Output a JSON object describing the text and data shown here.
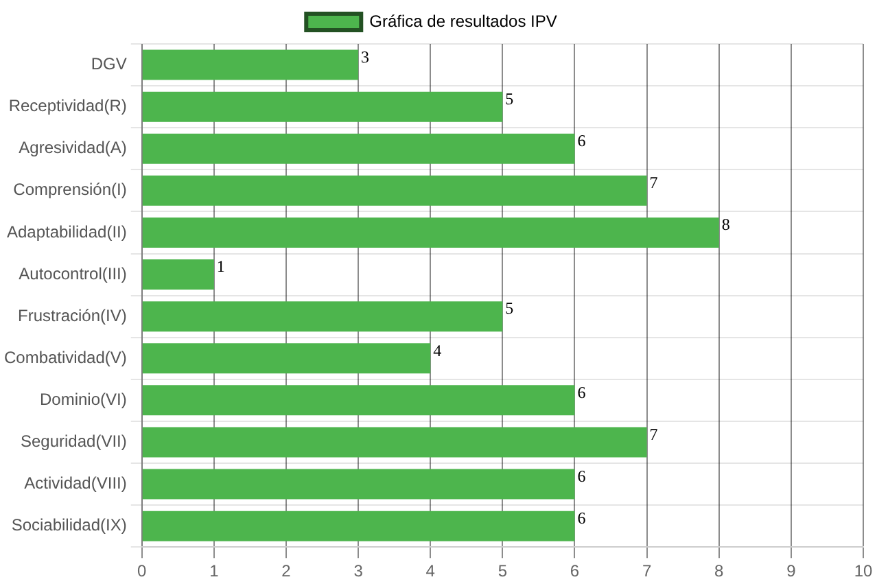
{
  "chart_data": {
    "type": "bar",
    "orientation": "horizontal",
    "categories": [
      "DGV",
      "Receptividad(R)",
      "Agresividad(A)",
      "Comprensión(I)",
      "Adaptabilidad(II)",
      "Autocontrol(III)",
      "Frustración(IV)",
      "Combatividad(V)",
      "Dominio(VI)",
      "Seguridad(VII)",
      "Actividad(VIII)",
      "Sociabilidad(IX)"
    ],
    "series": [
      {
        "name": "Gráfica de resultados IPV",
        "color": "#4db54d",
        "values": [
          3,
          5,
          6,
          7,
          8,
          1,
          5,
          4,
          6,
          7,
          6,
          6
        ]
      }
    ],
    "xlim": [
      0,
      10
    ],
    "xticks": [
      0,
      1,
      2,
      3,
      4,
      5,
      6,
      7,
      8,
      9,
      10
    ],
    "grid": true,
    "legend": "top",
    "data_labels": true
  }
}
